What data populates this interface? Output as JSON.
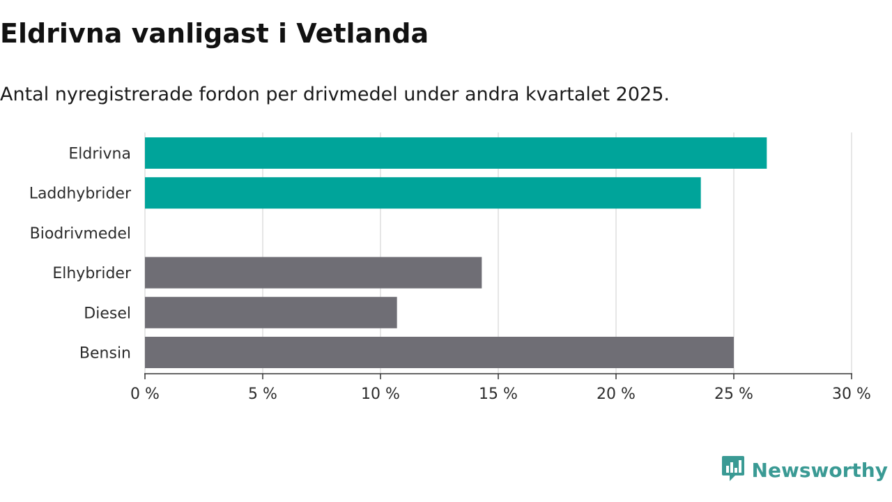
{
  "title": "Eldrivna vanligast i Vetlanda",
  "subtitle": "Antal nyregistrerade fordon per drivmedel under andra kvartalet 2025.",
  "brand": {
    "name": "Newsworthy",
    "icon": "newsworthy-logo-icon",
    "color": "#3a9a94"
  },
  "colors": {
    "highlight": "#00a49a",
    "default": "#6f6e75",
    "grid": "#dedede",
    "axis": "#333333"
  },
  "chart_data": {
    "type": "bar",
    "orientation": "horizontal",
    "categories": [
      "Eldrivna",
      "Laddhybrider",
      "Biodrivmedel",
      "Elhybrider",
      "Diesel",
      "Bensin"
    ],
    "values": [
      26.4,
      23.6,
      0,
      14.3,
      10.7,
      25.0
    ],
    "highlight": [
      true,
      true,
      false,
      false,
      false,
      false
    ],
    "xlim": [
      0,
      30
    ],
    "xticks": [
      0,
      5,
      10,
      15,
      20,
      25,
      30
    ],
    "xtick_labels": [
      "0 %",
      "5 %",
      "10 %",
      "15 %",
      "20 %",
      "25 %",
      "30 %"
    ],
    "grid": true,
    "unit": "%"
  }
}
